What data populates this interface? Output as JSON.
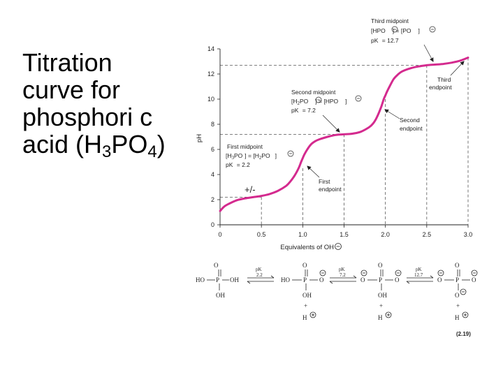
{
  "slide": {
    "title_part1": "Titration curve for phosphori c acid (H",
    "sub1": "3",
    "title_part2": "PO",
    "sub2": "4",
    "title_part3": ")"
  },
  "chart_data": {
    "type": "line",
    "xlabel": "Equivalents of OH",
    "ylabel": "pH",
    "xlim": [
      0,
      3.0
    ],
    "ylim": [
      0,
      14
    ],
    "x_ticks": [
      "0",
      "0.5",
      "1.0",
      "1.5",
      "2.0",
      "2.5",
      "3.0"
    ],
    "y_ticks": [
      "0",
      "2",
      "4",
      "6",
      "8",
      "10",
      "12",
      "14"
    ],
    "curve_color": "#d42a8e",
    "pKa": [
      2.2,
      7.2,
      12.7
    ],
    "x": [
      0.0,
      0.05,
      0.1,
      0.2,
      0.3,
      0.4,
      0.5,
      0.6,
      0.7,
      0.8,
      0.85,
      0.9,
      0.95,
      0.98,
      1.0,
      1.02,
      1.05,
      1.1,
      1.15,
      1.2,
      1.3,
      1.4,
      1.5,
      1.6,
      1.7,
      1.8,
      1.85,
      1.9,
      1.95,
      1.98,
      2.0,
      2.02,
      2.05,
      2.1,
      2.15,
      2.2,
      2.3,
      2.4,
      2.5,
      2.6,
      2.7,
      2.8,
      2.9,
      3.0
    ],
    "y": [
      1.1,
      1.45,
      1.65,
      1.95,
      2.1,
      2.2,
      2.3,
      2.45,
      2.7,
      3.1,
      3.45,
      3.9,
      4.5,
      5.0,
      5.3,
      5.6,
      5.95,
      6.4,
      6.65,
      6.8,
      7.0,
      7.15,
      7.2,
      7.25,
      7.4,
      7.75,
      8.05,
      8.6,
      9.4,
      10.0,
      10.3,
      10.6,
      11.0,
      11.6,
      11.95,
      12.2,
      12.45,
      12.6,
      12.7,
      12.75,
      12.8,
      12.9,
      13.05,
      13.3
    ],
    "annotations": {
      "third_midpoint": [
        "Third midpoint",
        "[HPO",
        "] = [PO",
        "]",
        "pK",
        " = 12.7"
      ],
      "third_endpoint": [
        "Third",
        "endpoint"
      ],
      "second_midpoint": [
        "Second midpoint",
        "[H",
        "PO",
        "] = [HPO",
        "]",
        "pK",
        " = 7.2"
      ],
      "second_endpoint": [
        "Second",
        "endpoint"
      ],
      "first_midpoint": [
        "First midpoint",
        "[H",
        "PO",
        "] = [H",
        "PO",
        "]",
        "pK",
        " = 2.2"
      ],
      "first_endpoint": [
        "First",
        "endpoint"
      ],
      "plus_minus_mark": "+/-"
    },
    "equation_number": "(2.19)",
    "reaction": {
      "arrow1": [
        "pK",
        "2.2"
      ],
      "arrow2": [
        "pK",
        "7.2"
      ],
      "arrow3": [
        "pK",
        "12.7"
      ]
    }
  }
}
